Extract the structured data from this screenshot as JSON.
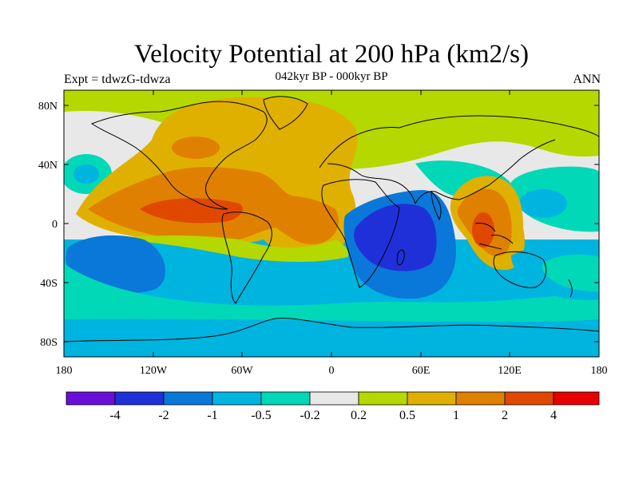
{
  "title": "Velocity Potential at 200 hPa (km2/s)",
  "left_label": "Expt = tdwzG-tdwza",
  "center_label": "042kyr BP - 000kyr BP",
  "right_label": "ANN",
  "lon_ticks": [
    "180",
    "120W",
    "60W",
    "0",
    "60E",
    "120E",
    "180"
  ],
  "lat_ticks": [
    "80N",
    "40N",
    "0",
    "40S",
    "80S"
  ],
  "colors": {
    "c1": "#6a0fd8",
    "c2": "#2030d8",
    "c3": "#0a78d8",
    "c4": "#00b4e0",
    "c5": "#00d8b8",
    "c6": "#e8e8e8",
    "c7": "#b4d800",
    "c8": "#e0b000",
    "c9": "#e08000",
    "c10": "#e04800",
    "c11": "#e80000"
  },
  "colorbar_labels": [
    "-4",
    "-2",
    "-1",
    "-0.5",
    "-0.2",
    "0.2",
    "0.5",
    "1",
    "2",
    "4"
  ]
}
